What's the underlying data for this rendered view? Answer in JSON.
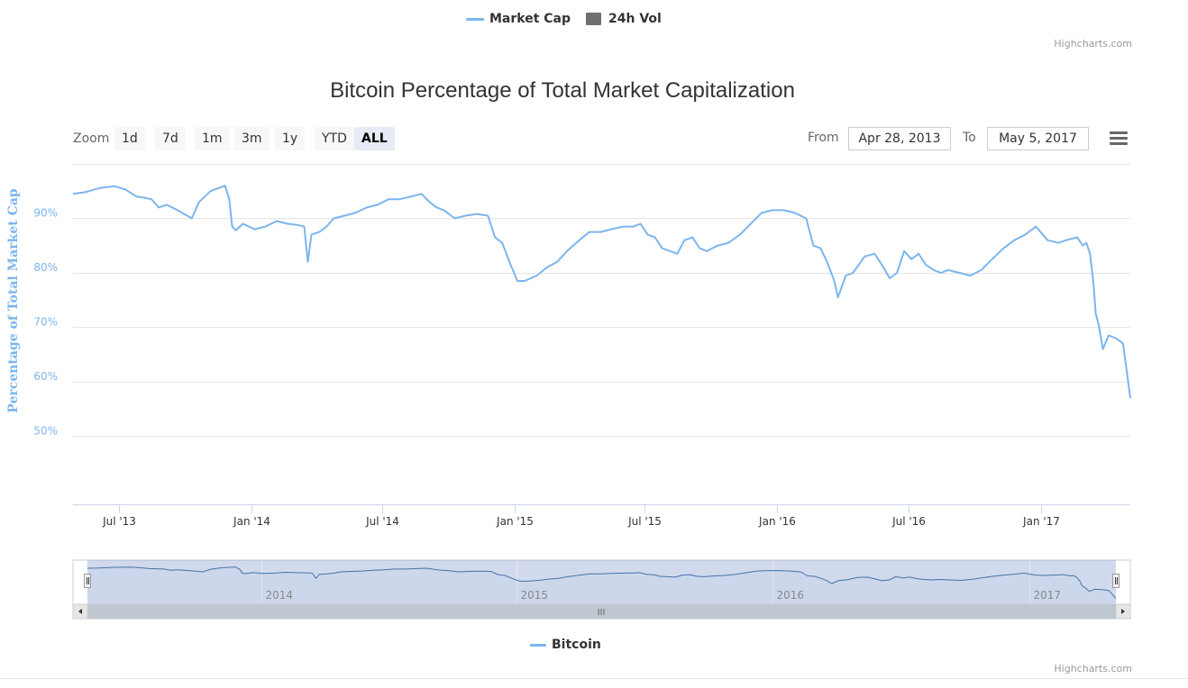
{
  "legend": {
    "market_cap": "Market Cap",
    "volume": "24h Vol",
    "market_cap_color": "#7cb5ec",
    "volume_color": "#707070"
  },
  "credits": "Highcharts.com",
  "range_selector": {
    "zoom_label": "Zoom",
    "buttons": [
      "1d",
      "7d",
      "1m",
      "3m",
      "1y",
      "YTD",
      "ALL"
    ],
    "selected": "ALL",
    "from_label": "From",
    "to_label": "To",
    "from_value": "Apr 28, 2013",
    "to_value": "May 5, 2017"
  },
  "menu_icon": "hamburger-menu-icon",
  "navigator": {
    "year_labels": [
      "2014",
      "2015",
      "2016",
      "2017"
    ],
    "legend": "Bitcoin",
    "scrollbar_grip": "III"
  },
  "chart_data": {
    "type": "line",
    "title": "Bitcoin Percentage of Total Market Capitalization",
    "ylabel": "Percentage of Total Market Cap",
    "xlabel": "",
    "ylim": [
      37.5,
      100
    ],
    "xlim": [
      "2013-04-28",
      "2017-05-05"
    ],
    "y_ticks": [
      50,
      60,
      70,
      80,
      90
    ],
    "y_tick_labels": [
      "50%",
      "60%",
      "70%",
      "80%",
      "90%"
    ],
    "x_ticks": [
      "2013-07-01",
      "2014-01-01",
      "2014-07-01",
      "2015-01-01",
      "2015-07-01",
      "2016-01-01",
      "2016-07-01",
      "2017-01-01"
    ],
    "x_tick_labels": [
      "Jul '13",
      "Jan '14",
      "Jul '14",
      "Jan '15",
      "Jul '15",
      "Jan '16",
      "Jul '16",
      "Jan '17"
    ],
    "grid": true,
    "legend_position": "top",
    "series": [
      {
        "name": "Bitcoin",
        "color": "#7cb5ec",
        "x": [
          "2013-04-28",
          "2013-05-15",
          "2013-06-05",
          "2013-06-25",
          "2013-07-10",
          "2013-07-25",
          "2013-08-05",
          "2013-08-15",
          "2013-08-25",
          "2013-09-05",
          "2013-09-20",
          "2013-10-10",
          "2013-10-20",
          "2013-11-05",
          "2013-11-15",
          "2013-11-25",
          "2013-12-01",
          "2013-12-05",
          "2013-12-10",
          "2013-12-20",
          "2014-01-05",
          "2014-01-20",
          "2014-02-05",
          "2014-02-20",
          "2014-03-05",
          "2014-03-15",
          "2014-03-20",
          "2014-03-25",
          "2014-04-05",
          "2014-04-15",
          "2014-04-25",
          "2014-05-10",
          "2014-05-25",
          "2014-06-10",
          "2014-06-25",
          "2014-07-10",
          "2014-07-25",
          "2014-08-10",
          "2014-08-25",
          "2014-09-05",
          "2014-09-15",
          "2014-09-25",
          "2014-10-10",
          "2014-10-25",
          "2014-11-10",
          "2014-11-25",
          "2014-12-05",
          "2014-12-15",
          "2014-12-25",
          "2015-01-05",
          "2015-01-15",
          "2015-02-01",
          "2015-02-15",
          "2015-03-01",
          "2015-03-15",
          "2015-04-01",
          "2015-04-15",
          "2015-05-01",
          "2015-05-15",
          "2015-06-01",
          "2015-06-15",
          "2015-06-25",
          "2015-07-05",
          "2015-07-15",
          "2015-07-25",
          "2015-08-05",
          "2015-08-15",
          "2015-08-25",
          "2015-09-05",
          "2015-09-15",
          "2015-09-25",
          "2015-10-10",
          "2015-10-25",
          "2015-11-10",
          "2015-11-25",
          "2015-12-10",
          "2015-12-25",
          "2016-01-10",
          "2016-01-25",
          "2016-02-10",
          "2016-02-20",
          "2016-03-01",
          "2016-03-10",
          "2016-03-20",
          "2016-03-25",
          "2016-04-05",
          "2016-04-15",
          "2016-05-01",
          "2016-05-15",
          "2016-05-25",
          "2016-06-05",
          "2016-06-15",
          "2016-06-20",
          "2016-06-25",
          "2016-07-05",
          "2016-07-15",
          "2016-07-25",
          "2016-08-05",
          "2016-08-15",
          "2016-08-25",
          "2016-09-10",
          "2016-09-25",
          "2016-10-10",
          "2016-10-25",
          "2016-11-10",
          "2016-11-25",
          "2016-12-10",
          "2016-12-25",
          "2017-01-10",
          "2017-01-25",
          "2017-02-05",
          "2017-02-20",
          "2017-02-28",
          "2017-03-05",
          "2017-03-10",
          "2017-03-15",
          "2017-03-18",
          "2017-03-22",
          "2017-03-28",
          "2017-04-05",
          "2017-04-15",
          "2017-04-25",
          "2017-05-01",
          "2017-05-05"
        ],
        "y": [
          94.5,
          94.8,
          95.6,
          95.9,
          95.3,
          94.0,
          93.8,
          93.5,
          92.0,
          92.5,
          91.5,
          90.0,
          93.0,
          95.0,
          95.5,
          96.0,
          93.5,
          88.5,
          87.8,
          89.0,
          88.0,
          88.5,
          89.5,
          89.0,
          88.8,
          88.5,
          82.0,
          87.0,
          87.5,
          88.5,
          90.0,
          90.5,
          91.0,
          92.0,
          92.5,
          93.5,
          93.5,
          94.0,
          94.5,
          93.0,
          92.0,
          91.5,
          90.0,
          90.5,
          90.8,
          90.5,
          86.5,
          85.5,
          82.0,
          78.5,
          78.5,
          79.5,
          81.0,
          82.0,
          84.0,
          86.0,
          87.5,
          87.5,
          88.0,
          88.5,
          88.5,
          89.0,
          87.0,
          86.5,
          84.5,
          84.0,
          83.5,
          86.0,
          86.5,
          84.5,
          84.0,
          85.0,
          85.5,
          87.0,
          89.0,
          91.0,
          91.5,
          91.5,
          91.0,
          90.0,
          85.0,
          84.5,
          82.0,
          78.5,
          75.5,
          79.5,
          80.0,
          83.0,
          83.5,
          81.5,
          79.0,
          80.0,
          82.0,
          84.0,
          82.5,
          83.5,
          81.5,
          80.5,
          80.0,
          80.5,
          80.0,
          79.5,
          80.5,
          82.5,
          84.5,
          86.0,
          87.0,
          88.5,
          86.0,
          85.5,
          86.0,
          86.5,
          85.0,
          85.5,
          83.5,
          78.0,
          72.5,
          70.5,
          66.0,
          68.5,
          68.0,
          67.0,
          61.0,
          57.0
        ]
      }
    ]
  }
}
